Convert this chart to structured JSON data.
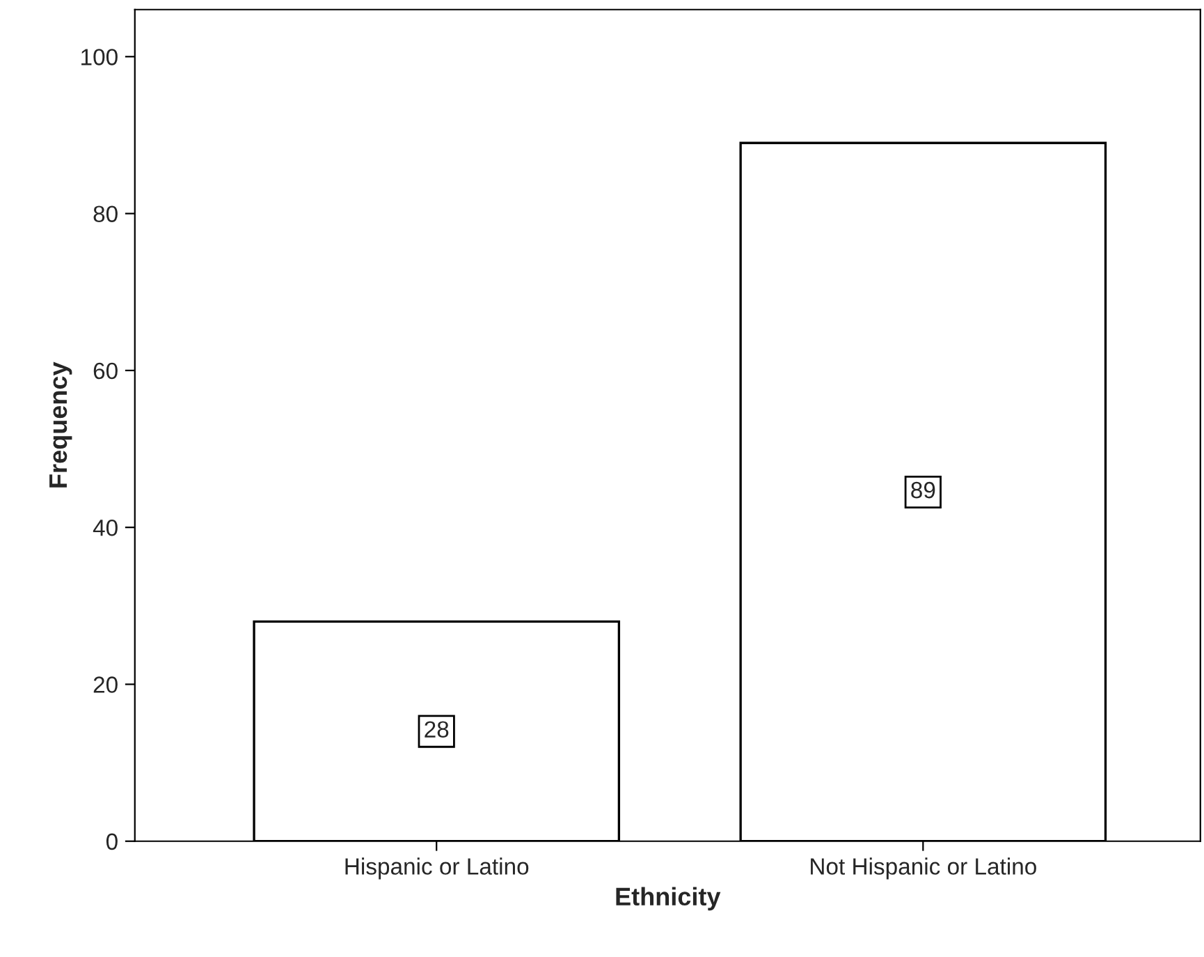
{
  "chart_data": {
    "type": "bar",
    "xlabel": "Ethnicity",
    "ylabel": "Frequency",
    "categories": [
      "Hispanic or Latino",
      "Not Hispanic or Latino"
    ],
    "values": [
      28,
      89
    ],
    "color": "#ffffff",
    "ylim": [
      0,
      106
    ],
    "yticks": [
      0,
      20,
      40,
      60,
      80,
      100
    ],
    "grid": false,
    "data_labels": true
  }
}
